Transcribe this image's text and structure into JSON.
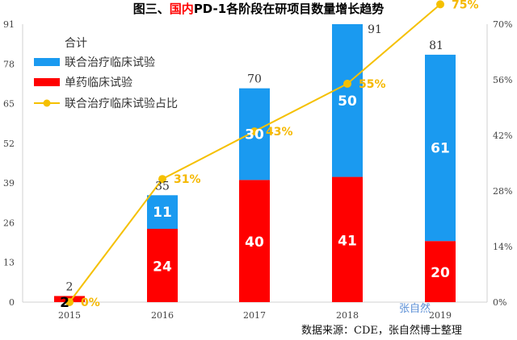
{
  "colors": {
    "combo": "#1a9af0",
    "mono": "#ff0000",
    "line": "#f5c000",
    "title_highlight": "#ff0000"
  },
  "chart_data": {
    "type": "bar",
    "title_parts": [
      "图三、",
      "国内",
      "PD-1各阶段在研项目数量增长趋势"
    ],
    "categories": [
      "2015",
      "2016",
      "2017",
      "2018",
      "2019"
    ],
    "series": [
      {
        "name": "联合治疗临床试验",
        "values": [
          0,
          11,
          30,
          50,
          61
        ]
      },
      {
        "name": "单药临床试验",
        "values": [
          2,
          24,
          40,
          41,
          20
        ]
      }
    ],
    "line_series": {
      "name": "联合治疗临床试验占比",
      "values": [
        0,
        31,
        43,
        55,
        75
      ],
      "labels": [
        "0%",
        "31%",
        "43%",
        "55%",
        "75%"
      ]
    },
    "totals": [
      "2",
      "35",
      "70",
      "91",
      "81"
    ],
    "bottom_labels": [
      "2",
      "24",
      "40",
      "41",
      "20"
    ],
    "top_labels": [
      "",
      "11",
      "30",
      "50",
      "61"
    ],
    "left_ticks": [
      "0",
      "13",
      "26",
      "39",
      "52",
      "65",
      "78",
      "91"
    ],
    "right_ticks": [
      "0%",
      "14%",
      "28%",
      "42%",
      "56%",
      "70%"
    ],
    "ylim": [
      0,
      91
    ],
    "ylim_right": [
      0,
      0.7
    ],
    "legend_title": "合计",
    "legend_placement": "top-left",
    "source_note": "数据来源：CDE，张自然博士整理",
    "watermark": "张自然"
  }
}
